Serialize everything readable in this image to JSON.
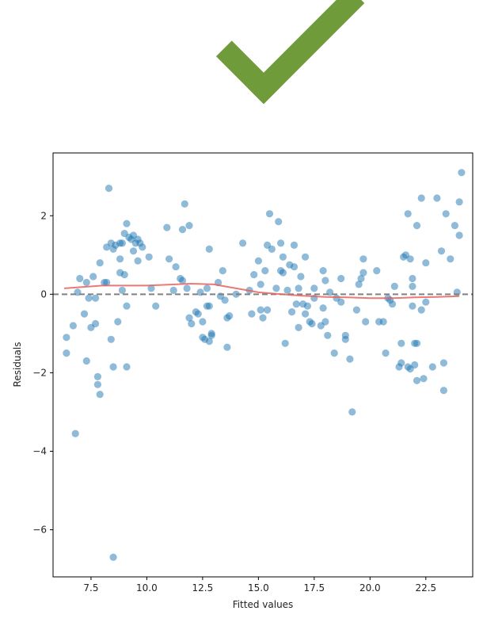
{
  "checkmark": {
    "icon": "check-icon",
    "color": "#6f9b3a"
  },
  "chart_data": {
    "type": "scatter",
    "title": "",
    "xlabel": "Fitted values",
    "ylabel": "Residuals",
    "xlim": [
      5.8,
      24.6
    ],
    "ylim": [
      -7.2,
      3.6
    ],
    "xticks": [
      7.5,
      10.0,
      12.5,
      15.0,
      17.5,
      20.0,
      22.5
    ],
    "xtick_labels": [
      "7.5",
      "10.0",
      "12.5",
      "15.0",
      "17.5",
      "20.0",
      "22.5"
    ],
    "yticks": [
      2,
      0,
      -2,
      -4,
      -6
    ],
    "ytick_labels": [
      "2",
      "0",
      "−2",
      "−4",
      "−6"
    ],
    "grid": false,
    "reference_line": {
      "y": 0,
      "style": "dashed",
      "color": "#808080"
    },
    "point_color": "#1f77b4",
    "smooth_color": "#e8615f",
    "points": [
      [
        6.4,
        -1.5
      ],
      [
        6.4,
        -1.1
      ],
      [
        6.7,
        -0.8
      ],
      [
        6.8,
        -3.55
      ],
      [
        6.9,
        0.05
      ],
      [
        7.0,
        0.4
      ],
      [
        7.2,
        -0.5
      ],
      [
        7.3,
        0.3
      ],
      [
        7.3,
        -1.7
      ],
      [
        7.4,
        -0.1
      ],
      [
        7.5,
        -0.85
      ],
      [
        7.6,
        0.45
      ],
      [
        7.7,
        -0.1
      ],
      [
        7.7,
        -0.75
      ],
      [
        7.8,
        -2.1
      ],
      [
        7.8,
        -2.3
      ],
      [
        7.9,
        -2.55
      ],
      [
        7.9,
        0.8
      ],
      [
        8.1,
        0.3
      ],
      [
        8.2,
        0.3
      ],
      [
        8.2,
        1.2
      ],
      [
        8.3,
        2.7
      ],
      [
        8.4,
        1.3
      ],
      [
        8.4,
        -1.15
      ],
      [
        8.5,
        -1.85
      ],
      [
        8.5,
        1.15
      ],
      [
        8.5,
        -6.7
      ],
      [
        8.6,
        1.25
      ],
      [
        8.7,
        -0.7
      ],
      [
        8.8,
        1.3
      ],
      [
        8.8,
        0.9
      ],
      [
        8.8,
        0.55
      ],
      [
        8.9,
        1.3
      ],
      [
        8.9,
        0.1
      ],
      [
        9.0,
        1.55
      ],
      [
        9.0,
        0.5
      ],
      [
        9.1,
        -0.3
      ],
      [
        9.1,
        -1.85
      ],
      [
        9.1,
        1.8
      ],
      [
        9.2,
        1.45
      ],
      [
        9.3,
        1.4
      ],
      [
        9.4,
        1.5
      ],
      [
        9.4,
        1.1
      ],
      [
        9.5,
        1.3
      ],
      [
        9.6,
        0.85
      ],
      [
        9.6,
        1.4
      ],
      [
        9.7,
        1.3
      ],
      [
        9.8,
        1.2
      ],
      [
        10.1,
        0.95
      ],
      [
        10.2,
        0.15
      ],
      [
        10.4,
        -0.3
      ],
      [
        10.9,
        1.7
      ],
      [
        11.0,
        0.9
      ],
      [
        11.2,
        0.1
      ],
      [
        11.3,
        0.7
      ],
      [
        11.5,
        0.4
      ],
      [
        11.6,
        1.65
      ],
      [
        11.6,
        0.35
      ],
      [
        11.7,
        2.3
      ],
      [
        11.8,
        0.15
      ],
      [
        11.9,
        -0.6
      ],
      [
        11.9,
        1.75
      ],
      [
        12.0,
        -0.75
      ],
      [
        12.2,
        -0.45
      ],
      [
        12.3,
        -0.5
      ],
      [
        12.4,
        0.05
      ],
      [
        12.5,
        -0.7
      ],
      [
        12.5,
        -1.1
      ],
      [
        12.6,
        -1.15
      ],
      [
        12.7,
        -0.3
      ],
      [
        12.7,
        0.15
      ],
      [
        12.8,
        1.15
      ],
      [
        12.8,
        -0.3
      ],
      [
        12.8,
        -1.2
      ],
      [
        12.9,
        -1.05
      ],
      [
        12.9,
        -1.0
      ],
      [
        13.2,
        0.3
      ],
      [
        13.3,
        -0.05
      ],
      [
        13.4,
        0.6
      ],
      [
        13.5,
        -0.15
      ],
      [
        13.6,
        -1.35
      ],
      [
        13.6,
        -0.6
      ],
      [
        13.7,
        -0.55
      ],
      [
        14.0,
        0.0
      ],
      [
        14.3,
        1.3
      ],
      [
        14.6,
        0.1
      ],
      [
        14.7,
        -0.5
      ],
      [
        14.8,
        0.5
      ],
      [
        15.0,
        0.85
      ],
      [
        15.1,
        0.25
      ],
      [
        15.1,
        -0.4
      ],
      [
        15.2,
        -0.6
      ],
      [
        15.3,
        0.6
      ],
      [
        15.4,
        -0.4
      ],
      [
        15.4,
        1.25
      ],
      [
        15.5,
        2.05
      ],
      [
        15.6,
        1.15
      ],
      [
        15.8,
        0.15
      ],
      [
        15.9,
        1.85
      ],
      [
        16.0,
        1.3
      ],
      [
        16.0,
        0.6
      ],
      [
        16.1,
        0.55
      ],
      [
        16.1,
        0.95
      ],
      [
        16.2,
        -1.25
      ],
      [
        16.3,
        0.1
      ],
      [
        16.4,
        0.75
      ],
      [
        16.5,
        -0.45
      ],
      [
        16.6,
        1.25
      ],
      [
        16.6,
        0.7
      ],
      [
        16.7,
        -0.25
      ],
      [
        16.8,
        0.15
      ],
      [
        16.8,
        -0.85
      ],
      [
        16.9,
        0.45
      ],
      [
        17.0,
        -0.25
      ],
      [
        17.1,
        0.95
      ],
      [
        17.1,
        -0.5
      ],
      [
        17.2,
        -0.3
      ],
      [
        17.3,
        -0.7
      ],
      [
        17.4,
        -0.75
      ],
      [
        17.5,
        0.15
      ],
      [
        17.5,
        -0.1
      ],
      [
        17.8,
        -0.8
      ],
      [
        17.9,
        0.6
      ],
      [
        17.9,
        -0.35
      ],
      [
        18.0,
        -0.7
      ],
      [
        18.0,
        0.35
      ],
      [
        18.1,
        -1.05
      ],
      [
        18.2,
        0.05
      ],
      [
        18.4,
        -1.5
      ],
      [
        18.5,
        -0.1
      ],
      [
        18.7,
        0.4
      ],
      [
        18.7,
        -0.2
      ],
      [
        18.9,
        -1.15
      ],
      [
        18.9,
        -1.05
      ],
      [
        19.1,
        -1.65
      ],
      [
        19.2,
        -3.0
      ],
      [
        19.4,
        -0.4
      ],
      [
        19.5,
        0.25
      ],
      [
        19.6,
        0.4
      ],
      [
        19.7,
        0.9
      ],
      [
        19.7,
        0.55
      ],
      [
        19.8,
        -0.7
      ],
      [
        20.3,
        0.6
      ],
      [
        20.4,
        -0.7
      ],
      [
        20.6,
        -0.7
      ],
      [
        20.7,
        -1.5
      ],
      [
        20.8,
        -0.1
      ],
      [
        20.9,
        -0.15
      ],
      [
        21.0,
        -0.25
      ],
      [
        21.1,
        0.2
      ],
      [
        21.3,
        -1.85
      ],
      [
        21.4,
        -1.25
      ],
      [
        21.4,
        -1.75
      ],
      [
        21.5,
        0.95
      ],
      [
        21.6,
        1.0
      ],
      [
        21.7,
        -1.85
      ],
      [
        21.7,
        2.05
      ],
      [
        21.8,
        -1.9
      ],
      [
        21.8,
        0.9
      ],
      [
        21.9,
        -0.3
      ],
      [
        21.9,
        0.2
      ],
      [
        21.9,
        0.4
      ],
      [
        22.0,
        -1.25
      ],
      [
        22.0,
        -1.8
      ],
      [
        22.1,
        1.75
      ],
      [
        22.1,
        -2.2
      ],
      [
        22.1,
        -1.25
      ],
      [
        22.3,
        2.45
      ],
      [
        22.3,
        -0.4
      ],
      [
        22.4,
        -2.15
      ],
      [
        22.5,
        0.8
      ],
      [
        22.5,
        -0.2
      ],
      [
        22.8,
        -1.85
      ],
      [
        23.0,
        2.45
      ],
      [
        23.2,
        1.1
      ],
      [
        23.3,
        -2.45
      ],
      [
        23.3,
        -1.75
      ],
      [
        23.4,
        2.05
      ],
      [
        23.6,
        0.9
      ],
      [
        23.8,
        1.75
      ],
      [
        23.9,
        0.05
      ],
      [
        24.0,
        2.35
      ],
      [
        24.0,
        1.5
      ],
      [
        24.1,
        3.1
      ]
    ],
    "smooth": [
      [
        6.3,
        0.15
      ],
      [
        8.0,
        0.22
      ],
      [
        10.0,
        0.22
      ],
      [
        12.0,
        0.27
      ],
      [
        13.0,
        0.25
      ],
      [
        14.0,
        0.15
      ],
      [
        15.0,
        0.05
      ],
      [
        16.0,
        0.0
      ],
      [
        17.0,
        -0.04
      ],
      [
        18.0,
        -0.07
      ],
      [
        19.0,
        -0.08
      ],
      [
        20.0,
        -0.1
      ],
      [
        21.0,
        -0.1
      ],
      [
        22.0,
        -0.08
      ],
      [
        23.0,
        -0.07
      ],
      [
        24.0,
        -0.05
      ]
    ]
  }
}
